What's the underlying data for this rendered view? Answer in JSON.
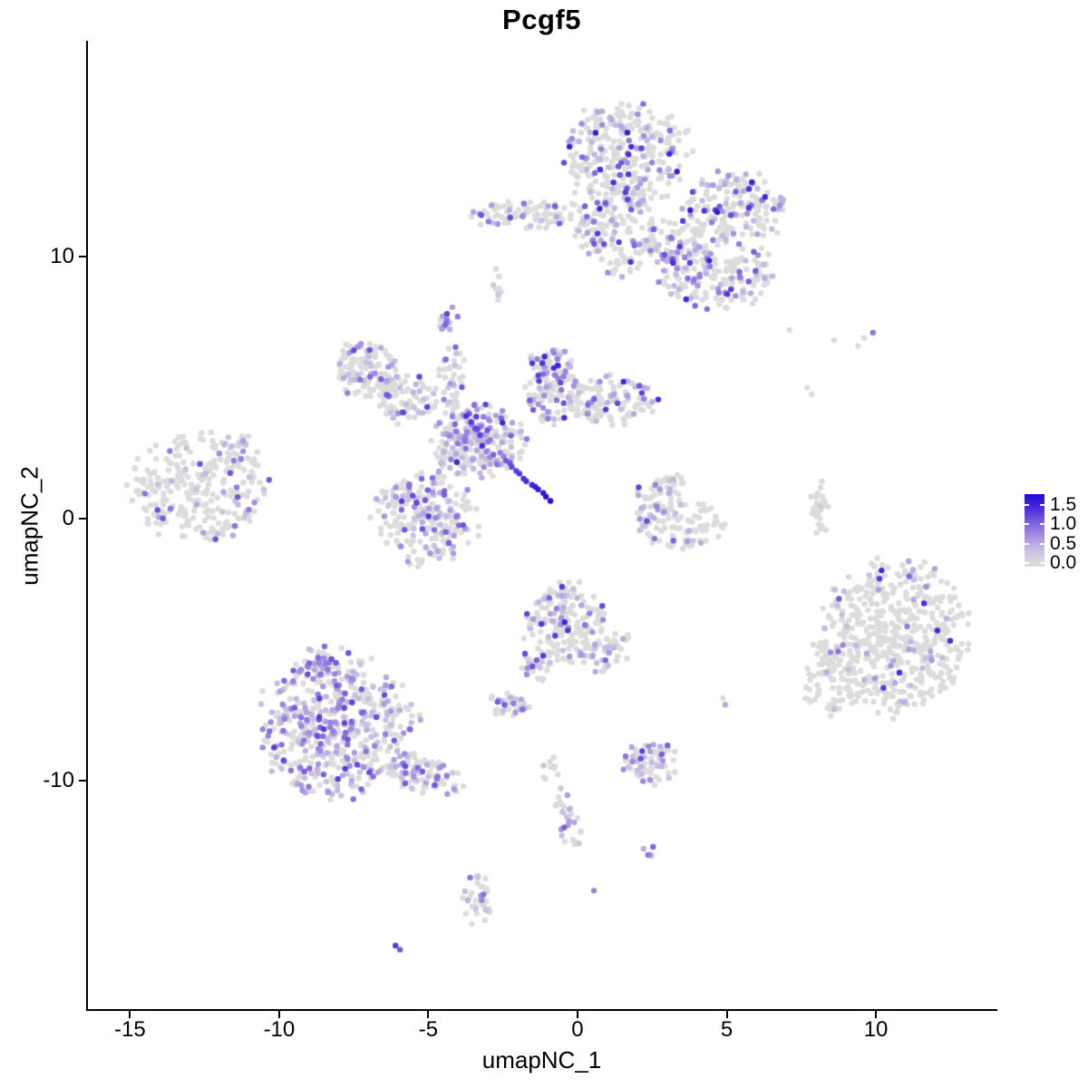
{
  "chart_data": {
    "type": "scatter",
    "title": "Pcgf5",
    "xlabel": "umapNC_1",
    "ylabel": "umapNC_2",
    "xlim": [
      -16.47,
      14.07
    ],
    "ylim": [
      -18.79,
      18.24
    ],
    "x_ticks": {
      "values": [
        -15,
        -10,
        -5,
        0,
        5,
        10
      ],
      "labels": [
        "-15",
        "-10",
        "-5",
        "0",
        "5",
        "10"
      ]
    },
    "y_ticks": {
      "values": [
        -10,
        0,
        10
      ],
      "labels": [
        "-10",
        "0",
        "10"
      ]
    },
    "legend": {
      "tick_values": [
        1.5,
        1.0,
        0.5,
        0.0
      ],
      "tick_labels": [
        "1.5",
        "1.0",
        "0.5",
        "0.0"
      ],
      "bar_vmin": -0.09,
      "bar_vmax": 1.77,
      "position": "right-middle"
    },
    "grid": false,
    "colors": {
      "background": "#FFFFFF",
      "axis": "#000000",
      "zero_expression": "#DCDCDC",
      "stops": [
        [
          0.0,
          "#DCDCDC"
        ],
        [
          0.35,
          "#C5BDE2"
        ],
        [
          0.7,
          "#A58FE1"
        ],
        [
          1.05,
          "#7D60DE"
        ],
        [
          1.4,
          "#4A2ADC"
        ],
        [
          1.77,
          "#2309D8"
        ]
      ]
    },
    "point_radius": 3.2,
    "seed": 20240601,
    "clusters": [
      {
        "name": "top-main-upper",
        "x": 1.6,
        "y": 13.9,
        "rx": 2.1,
        "ry": 2.05,
        "n": 290,
        "frac": 0.33,
        "vmax": 1.6
      },
      {
        "name": "top-main-lower",
        "x": 1.3,
        "y": 11.1,
        "rx": 1.4,
        "ry": 1.75,
        "n": 150,
        "frac": 0.3,
        "vmax": 1.5
      },
      {
        "name": "top-right-lobe",
        "x": 5.3,
        "y": 11.9,
        "rx": 1.7,
        "ry": 1.3,
        "n": 165,
        "frac": 0.36,
        "vmax": 1.6
      },
      {
        "name": "top-se-lobe",
        "x": 4.6,
        "y": 9.4,
        "rx": 1.85,
        "ry": 1.3,
        "n": 175,
        "frac": 0.38,
        "vmax": 1.5
      },
      {
        "name": "top-connector",
        "x": 3.3,
        "y": 10.45,
        "rx": 1.1,
        "ry": 0.9,
        "n": 70,
        "frac": 0.3,
        "vmax": 1.4
      },
      {
        "name": "top-west-band",
        "x": -1.6,
        "y": 11.6,
        "rx": 2.1,
        "ry": 0.5,
        "n": 90,
        "frac": 0.28,
        "vmax": 1.3
      },
      {
        "name": "top-west-spur",
        "x": -2.7,
        "y": 8.9,
        "rx": 0.2,
        "ry": 0.65,
        "n": 8,
        "frac": 0.25,
        "vmax": 1.0
      },
      {
        "name": "central-knob",
        "x": -4.4,
        "y": 7.6,
        "rx": 0.4,
        "ry": 0.5,
        "n": 14,
        "frac": 0.85,
        "vmax": 1.3
      },
      {
        "name": "central-north-arm",
        "x": -4.2,
        "y": 5.3,
        "rx": 0.5,
        "ry": 1.25,
        "n": 40,
        "frac": 0.3,
        "vmax": 1.2
      },
      {
        "name": "central-nw-arm",
        "x": -7.0,
        "y": 5.7,
        "rx": 1.15,
        "ry": 1.05,
        "n": 120,
        "frac": 0.3,
        "vmax": 1.3
      },
      {
        "name": "central-nw-link",
        "x": -5.7,
        "y": 4.6,
        "rx": 0.95,
        "ry": 0.9,
        "n": 80,
        "frac": 0.3,
        "vmax": 1.3
      },
      {
        "name": "central-core",
        "x": -3.3,
        "y": 2.9,
        "rx": 1.5,
        "ry": 1.35,
        "n": 260,
        "frac": 0.42,
        "vmax": 1.5
      },
      {
        "name": "central-ne-arm",
        "x": -0.9,
        "y": 5.1,
        "rx": 0.95,
        "ry": 1.5,
        "n": 130,
        "frac": 0.35,
        "vmax": 1.5
      },
      {
        "name": "central-east-arm",
        "x": 1.1,
        "y": 4.5,
        "rx": 1.5,
        "ry": 1.0,
        "n": 120,
        "frac": 0.3,
        "vmax": 1.5
      },
      {
        "name": "central-sw-lobe",
        "x": -5.1,
        "y": 0.0,
        "rx": 1.7,
        "ry": 1.7,
        "n": 230,
        "frac": 0.35,
        "vmax": 1.3
      },
      {
        "name": "left-main",
        "x": -12.7,
        "y": 1.2,
        "rx": 2.25,
        "ry": 2.0,
        "n": 270,
        "frac": 0.15,
        "vmax": 1.2
      },
      {
        "name": "left-ne-spur",
        "x": -11.4,
        "y": 2.8,
        "rx": 0.55,
        "ry": 0.5,
        "n": 20,
        "frac": 0.3,
        "vmax": 1.0
      },
      {
        "name": "crescent-top",
        "x": 3.0,
        "y": 1.3,
        "rx": 0.55,
        "ry": 0.5,
        "n": 30,
        "frac": 0.25,
        "vmax": 1.2
      },
      {
        "name": "crescent-left",
        "x": 2.3,
        "y": 0.4,
        "rx": 0.45,
        "ry": 0.9,
        "n": 30,
        "frac": 0.5,
        "vmax": 1.3
      },
      {
        "name": "crescent-bowl",
        "x": 3.5,
        "y": -0.2,
        "rx": 1.4,
        "ry": 1.0,
        "n": 90,
        "frac": 0.1,
        "vmax": 1.2
      },
      {
        "name": "right-strip",
        "x": 8.1,
        "y": 0.4,
        "rx": 0.3,
        "ry": 1.1,
        "n": 30,
        "frac": 0.05,
        "vmax": 0.9
      },
      {
        "name": "right-main",
        "x": 10.6,
        "y": -4.5,
        "rx": 2.45,
        "ry": 2.85,
        "n": 520,
        "frac": 0.09,
        "vmax": 1.5
      },
      {
        "name": "right-spur",
        "x": 8.4,
        "y": -6.0,
        "rx": 0.85,
        "ry": 1.4,
        "n": 70,
        "frac": 0.06,
        "vmax": 1.2
      },
      {
        "name": "bottomleft-main",
        "x": -8.1,
        "y": -7.9,
        "rx": 2.5,
        "ry": 2.7,
        "n": 520,
        "frac": 0.45,
        "vmax": 1.3
      },
      {
        "name": "bottomleft-tail",
        "x": -5.1,
        "y": -9.8,
        "rx": 1.25,
        "ry": 0.8,
        "n": 90,
        "frac": 0.35,
        "vmax": 1.2,
        "rot": -20
      },
      {
        "name": "bottomleft-spur",
        "x": -8.7,
        "y": -5.5,
        "rx": 0.6,
        "ry": 0.6,
        "n": 35,
        "frac": 0.4,
        "vmax": 1.2
      },
      {
        "name": "midbottom-main",
        "x": -0.4,
        "y": -4.0,
        "rx": 1.3,
        "ry": 1.55,
        "n": 190,
        "frac": 0.27,
        "vmax": 1.5
      },
      {
        "name": "midbottom-arm-l",
        "x": -1.5,
        "y": -5.7,
        "rx": 0.45,
        "ry": 0.65,
        "n": 25,
        "frac": 0.35,
        "vmax": 1.2,
        "rot": 40
      },
      {
        "name": "midbottom-arm-r",
        "x": 1.1,
        "y": -5.2,
        "rx": 0.55,
        "ry": 0.9,
        "n": 40,
        "frac": 0.3,
        "vmax": 1.3,
        "rot": -30
      },
      {
        "name": "midbottom-west",
        "x": -2.3,
        "y": -7.1,
        "rx": 0.7,
        "ry": 0.5,
        "n": 35,
        "frac": 0.35,
        "vmax": 1.2
      },
      {
        "name": "bottom-blob",
        "x": 2.4,
        "y": -9.3,
        "rx": 0.85,
        "ry": 0.85,
        "n": 75,
        "frac": 0.45,
        "vmax": 1.3
      },
      {
        "name": "bottom-chain-top",
        "x": -0.9,
        "y": -9.6,
        "rx": 0.3,
        "ry": 0.45,
        "n": 10,
        "frac": 0.1,
        "vmax": 0.8
      },
      {
        "name": "bottom-chain-mid",
        "x": -0.5,
        "y": -10.8,
        "rx": 0.25,
        "ry": 0.7,
        "n": 12,
        "frac": 0.3,
        "vmax": 1.1
      },
      {
        "name": "bottom-chain-low",
        "x": -0.15,
        "y": -12.0,
        "rx": 0.4,
        "ry": 0.65,
        "n": 18,
        "frac": 0.4,
        "vmax": 1.1
      },
      {
        "name": "bottom-pair",
        "x": 2.5,
        "y": -12.7,
        "rx": 0.35,
        "ry": 0.25,
        "n": 5,
        "frac": 0.8,
        "vmax": 1.1
      },
      {
        "name": "bottom-s-cluster",
        "x": -3.35,
        "y": -14.6,
        "rx": 0.45,
        "ry": 1.0,
        "n": 35,
        "frac": 0.4,
        "vmax": 1.1
      }
    ],
    "streak": {
      "name": "high-expression-streak",
      "from": [
        -2.4,
        2.2
      ],
      "to": [
        -0.95,
        0.7
      ],
      "n": 13,
      "v_from": 1.1,
      "v_to": 1.75
    },
    "extra_points": [
      [
        7.1,
        7.2,
        0
      ],
      [
        8.6,
        6.8,
        0
      ],
      [
        9.4,
        6.6,
        0
      ],
      [
        9.9,
        7.1,
        0.9
      ],
      [
        9.6,
        6.9,
        0
      ],
      [
        7.7,
        5.0,
        0
      ],
      [
        7.85,
        4.75,
        0
      ],
      [
        4.95,
        -7.1,
        0.5
      ],
      [
        4.87,
        -6.85,
        0
      ],
      [
        0.55,
        -14.2,
        0.8
      ],
      [
        -3.6,
        -13.7,
        0.9
      ],
      [
        -6.1,
        -16.3,
        1.3
      ],
      [
        -5.95,
        -16.45,
        1.1
      ]
    ]
  }
}
